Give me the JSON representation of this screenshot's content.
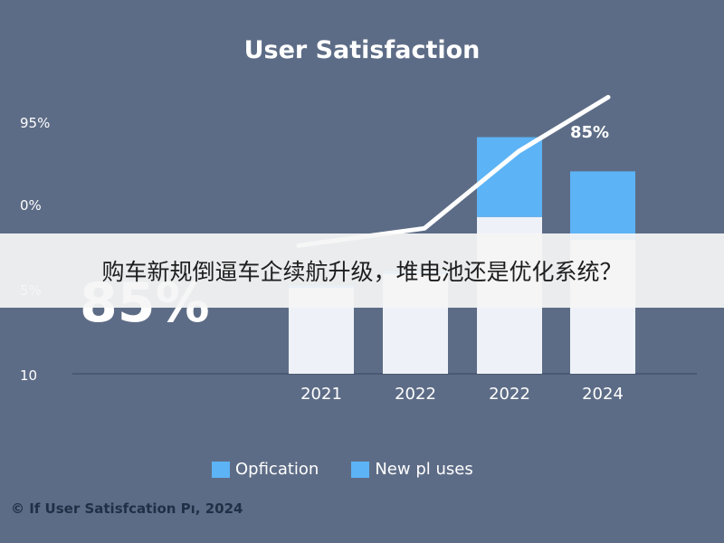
{
  "banner": {
    "text": "购车新规倒逼车企续航升级，堆电池还是优化系统？"
  },
  "footer": {
    "text": "© If User Satisfcation Pı, 2024"
  },
  "colors": {
    "background": "#5d6c86",
    "bar_light": "#eef2f8",
    "bar_blue": "#5cb3f5",
    "line": "#ffffff",
    "footer_text": "#1f2f45"
  },
  "chart_data": {
    "type": "bar",
    "title": "User Satisfaction",
    "categories": [
      "2021",
      "2022",
      "2022",
      "2024"
    ],
    "ytick_labels": [
      "95%",
      "0%",
      "5%",
      "10"
    ],
    "big_value_label": "85%",
    "end_label": "85%",
    "series": [
      {
        "name": "Opfication",
        "color": "#5cb3f5",
        "values": [
          1,
          1,
          28,
          24
        ]
      },
      {
        "name": "New pl uses",
        "color": "#eef2f8",
        "values": [
          30,
          35,
          55,
          47
        ]
      }
    ],
    "line": {
      "values": [
        45,
        51,
        78,
        97
      ]
    },
    "ylim": [
      0,
      100
    ],
    "legend_position": "bottom",
    "grid": false
  }
}
